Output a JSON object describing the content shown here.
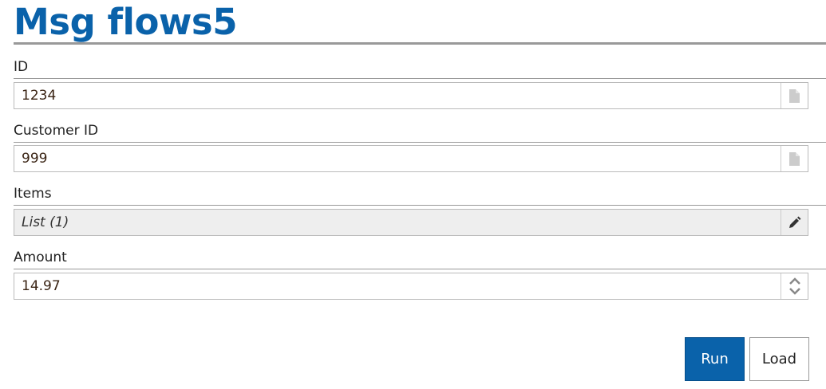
{
  "title": "Msg flows5",
  "fields": [
    {
      "label": "ID",
      "value": "1234",
      "icon": "document-icon"
    },
    {
      "label": "Customer ID",
      "value": "999",
      "icon": "document-icon"
    },
    {
      "label": "Items",
      "value": "List (1)",
      "icon": "pencil-icon"
    },
    {
      "label": "Amount",
      "value": "14.97",
      "icon": "spinner-arrows-icon"
    }
  ],
  "buttons": {
    "run": "Run",
    "load": "Load"
  },
  "colors": {
    "accent": "#0a62aa"
  }
}
